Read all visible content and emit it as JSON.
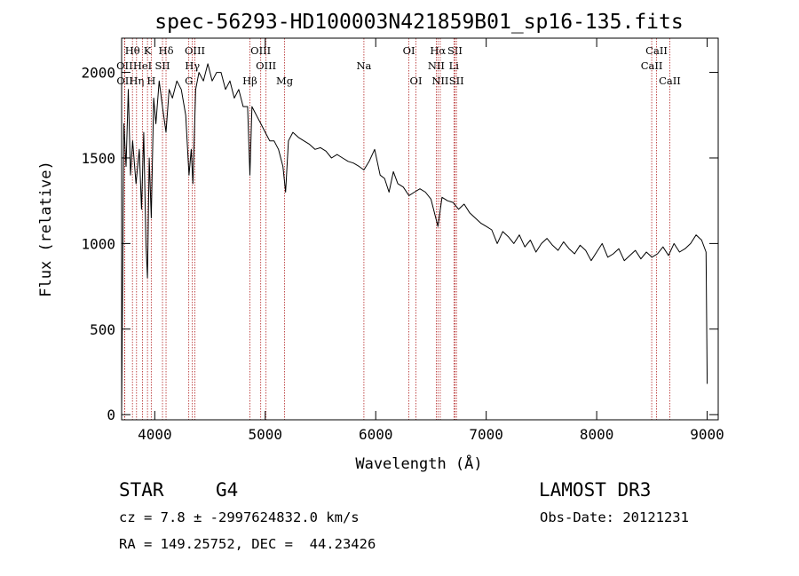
{
  "chart_data": {
    "type": "line",
    "title": "spec-56293-HD100003N421859B01_sp16-135.fits",
    "xlabel": "Wavelength (Å)",
    "ylabel": "Flux (relative)",
    "xlim": [
      3700,
      9100
    ],
    "ylim": [
      -30,
      2200
    ],
    "xticks": [
      4000,
      5000,
      6000,
      7000,
      8000,
      9000
    ],
    "yticks": [
      0,
      500,
      1000,
      1500,
      2000
    ],
    "series": [
      {
        "name": "flux",
        "x": [
          3700,
          3720,
          3740,
          3760,
          3780,
          3800,
          3830,
          3860,
          3880,
          3900,
          3920,
          3934,
          3950,
          3968,
          3990,
          4010,
          4040,
          4070,
          4102,
          4130,
          4160,
          4200,
          4240,
          4280,
          4310,
          4330,
          4345,
          4370,
          4400,
          4440,
          4480,
          4520,
          4560,
          4600,
          4640,
          4680,
          4720,
          4760,
          4800,
          4840,
          4861,
          4880,
          4920,
          4960,
          5000,
          5040,
          5080,
          5120,
          5160,
          5184,
          5210,
          5250,
          5300,
          5350,
          5400,
          5450,
          5500,
          5550,
          5600,
          5650,
          5700,
          5750,
          5800,
          5850,
          5893,
          5940,
          5990,
          6040,
          6080,
          6120,
          6160,
          6200,
          6250,
          6300,
          6350,
          6400,
          6450,
          6500,
          6563,
          6600,
          6650,
          6700,
          6750,
          6800,
          6850,
          6900,
          6950,
          7000,
          7050,
          7100,
          7150,
          7200,
          7250,
          7300,
          7350,
          7400,
          7450,
          7500,
          7550,
          7600,
          7650,
          7700,
          7750,
          7800,
          7850,
          7900,
          7950,
          8000,
          8050,
          8100,
          8150,
          8200,
          8250,
          8300,
          8350,
          8400,
          8450,
          8500,
          8550,
          8600,
          8650,
          8700,
          8750,
          8800,
          8850,
          8900,
          8950,
          8990,
          9000
        ],
        "values": [
          20,
          1700,
          1450,
          1900,
          1400,
          1600,
          1350,
          1550,
          1200,
          1650,
          1000,
          800,
          1500,
          1150,
          1850,
          1700,
          1950,
          1800,
          1650,
          1900,
          1850,
          1950,
          1900,
          1750,
          1400,
          1550,
          1350,
          1900,
          2000,
          1950,
          2050,
          1950,
          2000,
          2000,
          1900,
          1950,
          1850,
          1900,
          1800,
          1800,
          1400,
          1800,
          1750,
          1700,
          1650,
          1600,
          1600,
          1550,
          1450,
          1300,
          1600,
          1650,
          1620,
          1600,
          1580,
          1550,
          1560,
          1540,
          1500,
          1520,
          1500,
          1480,
          1470,
          1450,
          1430,
          1480,
          1550,
          1400,
          1380,
          1300,
          1420,
          1350,
          1330,
          1280,
          1300,
          1320,
          1300,
          1260,
          1100,
          1270,
          1250,
          1240,
          1200,
          1230,
          1180,
          1150,
          1120,
          1100,
          1080,
          1000,
          1070,
          1040,
          1000,
          1050,
          980,
          1020,
          950,
          1000,
          1030,
          990,
          960,
          1010,
          970,
          940,
          990,
          960,
          900,
          950,
          1000,
          920,
          940,
          970,
          900,
          930,
          960,
          910,
          950,
          920,
          940,
          980,
          930,
          1000,
          950,
          970,
          1000,
          1050,
          1020,
          950,
          180
        ]
      }
    ],
    "line_markers": [
      {
        "id": "h-theta",
        "lambda": 3798,
        "label": "Hθ",
        "row": 1
      },
      {
        "id": "o2-3727",
        "lambda": 3727,
        "label": "OII",
        "row": 2
      },
      {
        "id": "o2-3730",
        "lambda": 3729,
        "label": "OII",
        "row": 3
      },
      {
        "id": "h-eta",
        "lambda": 3835,
        "label": "Hη",
        "row": 3
      },
      {
        "id": "k-line",
        "lambda": 3934,
        "label": "K",
        "row": 1
      },
      {
        "id": "he1",
        "lambda": 3889,
        "label": "HeI",
        "row": 2
      },
      {
        "id": "h-line",
        "lambda": 3968,
        "label": "H",
        "row": 3
      },
      {
        "id": "s2-4068",
        "lambda": 4070,
        "label": "SII",
        "row": 2
      },
      {
        "id": "h-delta",
        "lambda": 4102,
        "label": "Hδ",
        "row": 1
      },
      {
        "id": "o3-4363",
        "lambda": 4363,
        "label": "OIII",
        "row": 1
      },
      {
        "id": "h-gamma",
        "lambda": 4340,
        "label": "Hγ",
        "row": 2
      },
      {
        "id": "g-band",
        "lambda": 4308,
        "label": "G",
        "row": 3
      },
      {
        "id": "h-beta",
        "lambda": 4861,
        "label": "Hβ",
        "row": 3
      },
      {
        "id": "o3-4959",
        "lambda": 4959,
        "label": "OIII",
        "row": 1
      },
      {
        "id": "o3-5007",
        "lambda": 5007,
        "label": "OIII",
        "row": 2
      },
      {
        "id": "mg",
        "lambda": 5175,
        "label": "Mg",
        "row": 3
      },
      {
        "id": "na",
        "lambda": 5893,
        "label": "Na",
        "row": 2
      },
      {
        "id": "o1-6300",
        "lambda": 6300,
        "label": "OI",
        "row": 1
      },
      {
        "id": "o1-6364",
        "lambda": 6364,
        "label": "OI",
        "row": 3
      },
      {
        "id": "h-alpha",
        "lambda": 6563,
        "label": "Hα",
        "row": 1
      },
      {
        "id": "n2-6548",
        "lambda": 6548,
        "label": "NII",
        "row": 2
      },
      {
        "id": "n2-6584",
        "lambda": 6584,
        "label": "NII",
        "row": 3
      },
      {
        "id": "s2-6717",
        "lambda": 6717,
        "label": "SII",
        "row": 1
      },
      {
        "id": "li",
        "lambda": 6708,
        "label": "Li",
        "row": 2
      },
      {
        "id": "s2-6731",
        "lambda": 6731,
        "label": "SII",
        "row": 3
      },
      {
        "id": "ca2-8542",
        "lambda": 8542,
        "label": "CaII",
        "row": 1
      },
      {
        "id": "ca2-8498",
        "lambda": 8498,
        "label": "CaII",
        "row": 2
      },
      {
        "id": "ca2-8662",
        "lambda": 8662,
        "label": "CaII",
        "row": 3
      }
    ],
    "colors": {
      "spectrum": "#000000",
      "lines": "#b22222"
    }
  },
  "info": {
    "class": "STAR",
    "subclass": "G4",
    "survey": "LAMOST DR3",
    "cz": "cz = 7.8 ± -2997624832.0 km/s",
    "obs_date": "Obs-Date: 20121231",
    "coords": "RA = 149.25752, DEC =  44.23426"
  }
}
